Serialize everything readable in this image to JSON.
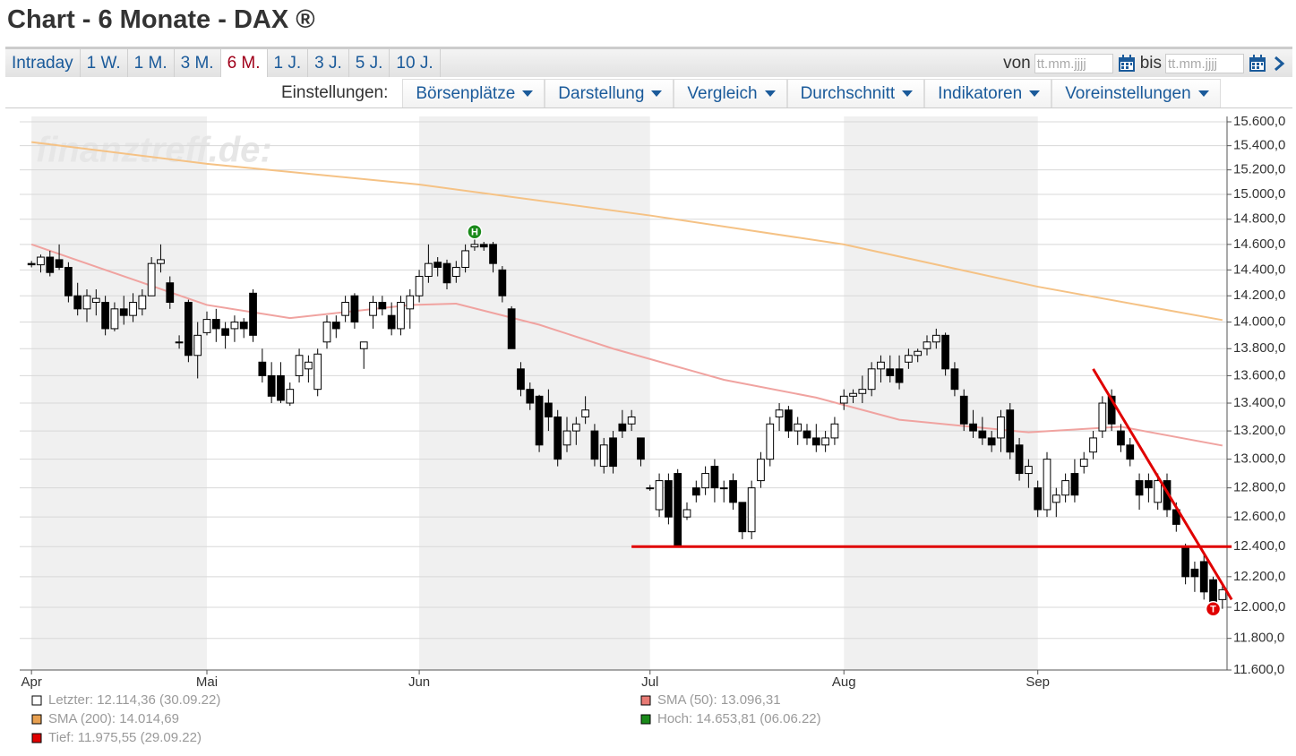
{
  "header": {
    "title": "Chart - 6 Monate - DAX ®"
  },
  "tabs": [
    "Intraday",
    "1 W.",
    "1 M.",
    "3 M.",
    "6 M.",
    "1 J.",
    "3 J.",
    "5 J.",
    "10 J."
  ],
  "active_tab": 4,
  "date_range": {
    "from_label": "von",
    "from_placeholder": "tt.mm.jjjj",
    "to_label": "bis",
    "to_placeholder": "tt.mm.jjjj"
  },
  "settings": {
    "label": "Einstellungen:",
    "menus": [
      "Börsenplätze",
      "Darstellung",
      "Vergleich",
      "Durchschnitt",
      "Indikatoren",
      "Voreinstellungen"
    ]
  },
  "chart_data": {
    "type": "candlestick",
    "watermark": "finanztreff.de:",
    "log": true,
    "grid": true,
    "xlim": [
      -0.5,
      129.5
    ],
    "xticks": [
      {
        "value": 0,
        "label": "Apr"
      },
      {
        "value": 19,
        "label": "Mai"
      },
      {
        "value": 42,
        "label": "Jun"
      },
      {
        "value": 67,
        "label": "Jul"
      },
      {
        "value": 88,
        "label": "Aug"
      },
      {
        "value": 109,
        "label": "Sep"
      }
    ],
    "ylim": [
      11600,
      15600
    ],
    "yticks": [
      {
        "value": 11600,
        "label": "11.600,0"
      },
      {
        "value": 11800,
        "label": "11.800,0"
      },
      {
        "value": 12000,
        "label": "12.000,0"
      },
      {
        "value": 12200,
        "label": "12.200,0"
      },
      {
        "value": 12400,
        "label": "12.400,0"
      },
      {
        "value": 12600,
        "label": "12.600,0"
      },
      {
        "value": 12800,
        "label": "12.800,0"
      },
      {
        "value": 13000,
        "label": "13.000,0"
      },
      {
        "value": 13200,
        "label": "13.200,0"
      },
      {
        "value": 13400,
        "label": "13.400,0"
      },
      {
        "value": 13600,
        "label": "13.600,0"
      },
      {
        "value": 13800,
        "label": "13.800,0"
      },
      {
        "value": 14000,
        "label": "14.000,0"
      },
      {
        "value": 14200,
        "label": "14.200,0"
      },
      {
        "value": 14400,
        "label": "14.400,0"
      },
      {
        "value": 14600,
        "label": "14.600,0"
      },
      {
        "value": 14800,
        "label": "14.800,0"
      },
      {
        "value": 15000,
        "label": "15.000,0"
      },
      {
        "value": 15200,
        "label": "15.200,0"
      },
      {
        "value": 15400,
        "label": "15.400,0"
      },
      {
        "value": 15600,
        "label": "15.600,0"
      }
    ],
    "up_color": "#ffffff",
    "down_color": "#000000",
    "candles": [
      [
        14450,
        14470,
        14420,
        14440
      ],
      [
        14440,
        14520,
        14380,
        14500
      ],
      [
        14500,
        14550,
        14350,
        14380
      ],
      [
        14480,
        14600,
        14400,
        14420
      ],
      [
        14420,
        14460,
        14150,
        14200
      ],
      [
        14200,
        14300,
        14050,
        14100
      ],
      [
        14100,
        14250,
        14000,
        14200
      ],
      [
        14150,
        14250,
        14050,
        14180
      ],
      [
        14150,
        14200,
        13900,
        13950
      ],
      [
        13950,
        14150,
        13930,
        14100
      ],
      [
        14100,
        14200,
        13980,
        14050
      ],
      [
        14050,
        14220,
        14000,
        14150
      ],
      [
        14100,
        14250,
        14050,
        14200
      ],
      [
        14200,
        14500,
        14200,
        14450
      ],
      [
        14450,
        14600,
        14380,
        14480
      ],
      [
        14300,
        14350,
        14100,
        14150
      ],
      [
        13850,
        13900,
        13800,
        13850
      ],
      [
        14150,
        14170,
        13700,
        13750
      ],
      [
        13750,
        14000,
        13580,
        13900
      ],
      [
        13920,
        14080,
        13900,
        14020
      ],
      [
        14020,
        14100,
        13850,
        13950
      ],
      [
        13950,
        14000,
        13800,
        13900
      ],
      [
        13950,
        14050,
        13850,
        14000
      ],
      [
        14000,
        14030,
        13880,
        13950
      ],
      [
        14220,
        14250,
        13850,
        13900
      ],
      [
        13700,
        13800,
        13550,
        13600
      ],
      [
        13600,
        13700,
        13400,
        13450
      ],
      [
        13600,
        13700,
        13400,
        13420
      ],
      [
        13400,
        13550,
        13380,
        13500
      ],
      [
        13600,
        13800,
        13550,
        13750
      ],
      [
        13650,
        13750,
        13550,
        13700
      ],
      [
        13500,
        13800,
        13450,
        13760
      ],
      [
        13850,
        14050,
        13800,
        14000
      ],
      [
        14000,
        14050,
        13880,
        13950
      ],
      [
        14050,
        14200,
        14000,
        14150
      ],
      [
        14200,
        14220,
        13950,
        14000
      ],
      [
        13800,
        13850,
        13650,
        13850
      ],
      [
        14050,
        14200,
        13950,
        14150
      ],
      [
        14150,
        14200,
        14050,
        14100
      ],
      [
        14050,
        14150,
        13900,
        13950
      ],
      [
        13950,
        14200,
        13900,
        14150
      ],
      [
        14100,
        14250,
        13950,
        14200
      ],
      [
        14200,
        14400,
        14150,
        14350
      ],
      [
        14350,
        14600,
        14300,
        14450
      ],
      [
        14460,
        14500,
        14350,
        14420
      ],
      [
        14450,
        14480,
        14250,
        14300
      ],
      [
        14350,
        14470,
        14300,
        14420
      ],
      [
        14420,
        14600,
        14380,
        14550
      ],
      [
        14580,
        14653.81,
        14550,
        14600
      ],
      [
        14600,
        14620,
        14550,
        14580
      ],
      [
        14600,
        14620,
        14380,
        14450
      ],
      [
        14400,
        14430,
        14150,
        14200
      ],
      [
        14100,
        14120,
        13800,
        13800
      ],
      [
        13650,
        13700,
        13450,
        13500
      ],
      [
        13500,
        13550,
        13350,
        13400
      ],
      [
        13450,
        13460,
        13050,
        13100
      ],
      [
        13400,
        13500,
        13200,
        13300
      ],
      [
        13300,
        13350,
        12950,
        13000
      ],
      [
        13100,
        13300,
        13050,
        13200
      ],
      [
        13200,
        13300,
        13100,
        13250
      ],
      [
        13300,
        13450,
        13250,
        13350
      ],
      [
        13200,
        13250,
        12950,
        13000
      ],
      [
        12950,
        13150,
        12900,
        13100
      ],
      [
        13150,
        13200,
        12900,
        12950
      ],
      [
        13250,
        13350,
        13150,
        13200
      ],
      [
        13250,
        13350,
        13200,
        13300
      ],
      [
        13150,
        13150,
        12950,
        13000
      ],
      [
        12800,
        12820,
        12780,
        12800
      ],
      [
        12650,
        12900,
        12600,
        12850
      ],
      [
        12850,
        12900,
        12550,
        12600
      ],
      [
        12900,
        12930,
        12400,
        12400
      ],
      [
        12600,
        12700,
        12580,
        12650
      ],
      [
        12800,
        12850,
        12700,
        12750
      ],
      [
        12800,
        12950,
        12750,
        12900
      ],
      [
        12950,
        13000,
        12700,
        12800
      ],
      [
        12800,
        12850,
        12700,
        12800
      ],
      [
        12850,
        12900,
        12650,
        12700
      ],
      [
        12700,
        12700,
        12450,
        12500
      ],
      [
        12500,
        12850,
        12450,
        12800
      ],
      [
        12850,
        13050,
        12800,
        13000
      ],
      [
        13000,
        13300,
        12950,
        13250
      ],
      [
        13300,
        13400,
        13200,
        13350
      ],
      [
        13350,
        13380,
        13150,
        13200
      ],
      [
        13200,
        13300,
        13100,
        13250
      ],
      [
        13200,
        13250,
        13100,
        13150
      ],
      [
        13150,
        13250,
        13050,
        13100
      ],
      [
        13100,
        13200,
        13050,
        13150
      ],
      [
        13150,
        13300,
        13100,
        13250
      ],
      [
        13400,
        13500,
        13350,
        13450
      ],
      [
        13450,
        13500,
        13400,
        13470
      ],
      [
        13470,
        13600,
        13400,
        13500
      ],
      [
        13500,
        13700,
        13450,
        13650
      ],
      [
        13650,
        13750,
        13550,
        13700
      ],
      [
        13650,
        13750,
        13550,
        13600
      ],
      [
        13650,
        13750,
        13500,
        13550
      ],
      [
        13700,
        13800,
        13650,
        13750
      ],
      [
        13750,
        13800,
        13700,
        13780
      ],
      [
        13800,
        13900,
        13750,
        13850
      ],
      [
        13850,
        13950,
        13800,
        13900
      ],
      [
        13900,
        13920,
        13600,
        13650
      ],
      [
        13650,
        13700,
        13450,
        13500
      ],
      [
        13450,
        13500,
        13200,
        13250
      ],
      [
        13250,
        13350,
        13150,
        13200
      ],
      [
        13200,
        13300,
        13100,
        13150
      ],
      [
        13150,
        13200,
        13050,
        13100
      ],
      [
        13150,
        13350,
        13050,
        13300
      ],
      [
        13350,
        13400,
        13000,
        13050
      ],
      [
        13100,
        13150,
        12850,
        12900
      ],
      [
        12900,
        13000,
        12800,
        12950
      ],
      [
        12800,
        12850,
        12600,
        12650
      ],
      [
        12650,
        13050,
        12600,
        13000
      ],
      [
        12700,
        12800,
        12600,
        12750
      ],
      [
        12750,
        12900,
        12700,
        12850
      ],
      [
        12900,
        13000,
        12700,
        12750
      ],
      [
        12950,
        13050,
        12900,
        13000
      ],
      [
        13050,
        13200,
        13000,
        13150
      ],
      [
        13200,
        13450,
        13150,
        13400
      ],
      [
        13450,
        13500,
        13200,
        13250
      ],
      [
        13200,
        13250,
        13050,
        13100
      ],
      [
        13100,
        13150,
        12950,
        13000
      ],
      [
        12850,
        12900,
        12650,
        12750
      ],
      [
        12850,
        12900,
        12700,
        12800
      ],
      [
        12700,
        12900,
        12650,
        12850
      ],
      [
        12850,
        12900,
        12600,
        12650
      ],
      [
        12650,
        12700,
        12500,
        12550
      ],
      [
        12400,
        12420,
        12150,
        12200
      ],
      [
        12250,
        12300,
        12100,
        12200
      ],
      [
        12300,
        12350,
        12050,
        12100
      ],
      [
        12180,
        12200,
        11975.55,
        12000
      ],
      [
        12050,
        12150,
        11990,
        12114.36
      ]
    ],
    "lines": [
      {
        "color": "#f5c285",
        "x": [
          0,
          19,
          42,
          67,
          88,
          109,
          129
        ],
        "values": [
          15430,
          15250,
          15080,
          14830,
          14600,
          14270,
          14015
        ]
      },
      {
        "color": "#f0a3a0",
        "x": [
          0,
          19,
          28,
          41,
          46,
          55,
          63,
          75,
          85,
          94,
          108,
          118,
          129
        ],
        "values": [
          14600,
          14130,
          14030,
          14130,
          14140,
          13980,
          13800,
          13570,
          13440,
          13280,
          13190,
          13230,
          13096
        ]
      }
    ],
    "trendlines": [
      {
        "color": "#e00000",
        "x": [
          65,
          130
        ],
        "values": [
          12400,
          12400
        ]
      },
      {
        "color": "#e00000",
        "x": [
          115,
          130
        ],
        "values": [
          13650,
          12050
        ]
      }
    ],
    "markers": [
      {
        "label": "H",
        "x": 48,
        "value": 14700,
        "color": "#1a8a1a"
      },
      {
        "label": "T",
        "x": 128,
        "value": 11990,
        "color": "#e00000"
      }
    ],
    "legend": [
      {
        "label": "Letzter: 12.114,36 (30.09.22)",
        "color": "#ffffff"
      },
      {
        "label": "SMA (50): 13.096,31",
        "color": "#e87a74"
      },
      {
        "label": "SMA (200): 14.014,69",
        "color": "#e8a050"
      },
      {
        "label": "Hoch: 14.653,81 (06.06.22)",
        "color": "#1a8a1a"
      },
      {
        "label": "Tief: 11.975,55 (29.09.22)",
        "color": "#e00000"
      }
    ]
  }
}
